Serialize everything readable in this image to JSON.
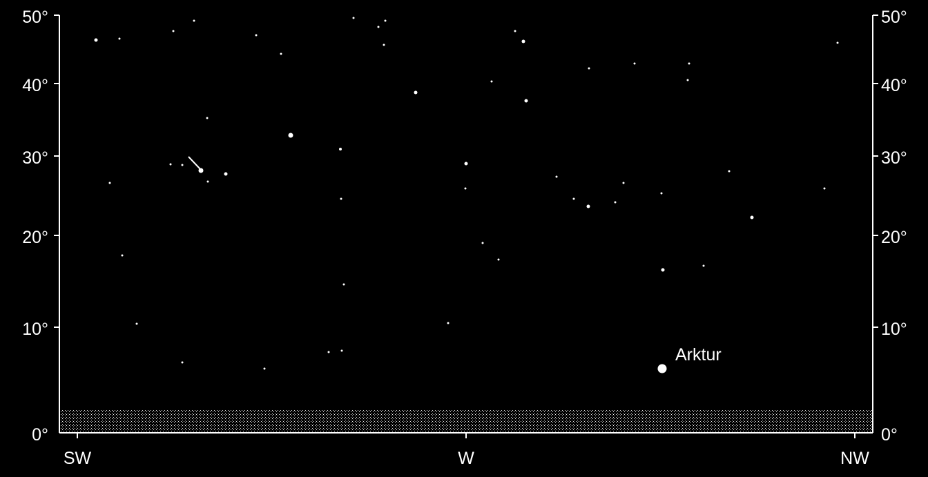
{
  "chart": {
    "altitude_labels_left": [
      "50°",
      "40°",
      "30°",
      "20°",
      "10°",
      "0°"
    ],
    "altitude_labels_right": [
      "50°",
      "40°",
      "30°",
      "20°",
      "10°",
      "0°"
    ],
    "altitude_values": [
      50,
      40,
      30,
      20,
      10,
      0
    ],
    "direction_labels": [
      "SW",
      "W",
      "NW"
    ],
    "colors": {
      "background": "#000000",
      "foreground": "#ffffff"
    },
    "horizon_pattern": "dotted-hatch"
  },
  "labeled_objects": [
    {
      "name": "Arktur",
      "altitude_deg": 7,
      "magnitude_class": "bright"
    }
  ],
  "meteor": {
    "visible": true
  }
}
